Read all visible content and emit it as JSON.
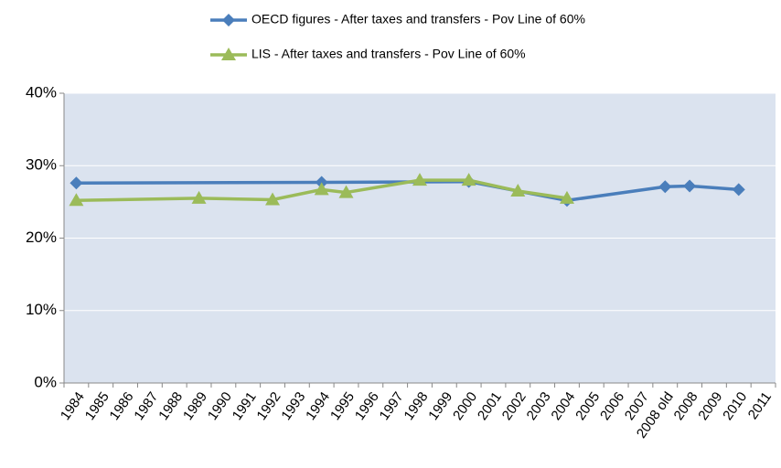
{
  "chart_data": {
    "type": "line",
    "categories": [
      "1984",
      "1985",
      "1986",
      "1987",
      "1988",
      "1989",
      "1990",
      "1991",
      "1992",
      "1993",
      "1994",
      "1995",
      "1996",
      "1997",
      "1998",
      "1999",
      "2000",
      "2001",
      "2002",
      "2003",
      "2004",
      "2005",
      "2006",
      "2007",
      "2008 old",
      "2008",
      "2009",
      "2010",
      "2011"
    ],
    "series": [
      {
        "name": "OECD figures - After taxes and transfers - Pov Line of 60%",
        "color": "#4a7ebb",
        "marker": "diamond",
        "values": [
          27.6,
          null,
          null,
          null,
          null,
          null,
          null,
          null,
          null,
          null,
          27.7,
          null,
          null,
          null,
          null,
          null,
          27.8,
          null,
          null,
          null,
          25.2,
          null,
          null,
          null,
          27.1,
          27.2,
          null,
          26.7,
          null
        ]
      },
      {
        "name": "LIS - After taxes and transfers - Pov Line of 60%",
        "color": "#9bbb59",
        "marker": "triangle",
        "values": [
          25.2,
          null,
          null,
          null,
          null,
          25.5,
          null,
          null,
          25.3,
          null,
          26.7,
          26.3,
          null,
          null,
          28.0,
          null,
          28.0,
          null,
          26.5,
          null,
          25.5,
          null,
          null,
          null,
          null,
          null,
          null,
          null,
          null
        ]
      }
    ],
    "connect_gaps": true,
    "ylim": [
      0,
      40
    ],
    "yticks": [
      {
        "value": 0,
        "label": "0%"
      },
      {
        "value": 10,
        "label": "10%"
      },
      {
        "value": 20,
        "label": "20%"
      },
      {
        "value": 30,
        "label": "30%"
      },
      {
        "value": 40,
        "label": "40%"
      }
    ],
    "grid": true,
    "legend": "top",
    "plot_background": "#dbe3ef"
  }
}
